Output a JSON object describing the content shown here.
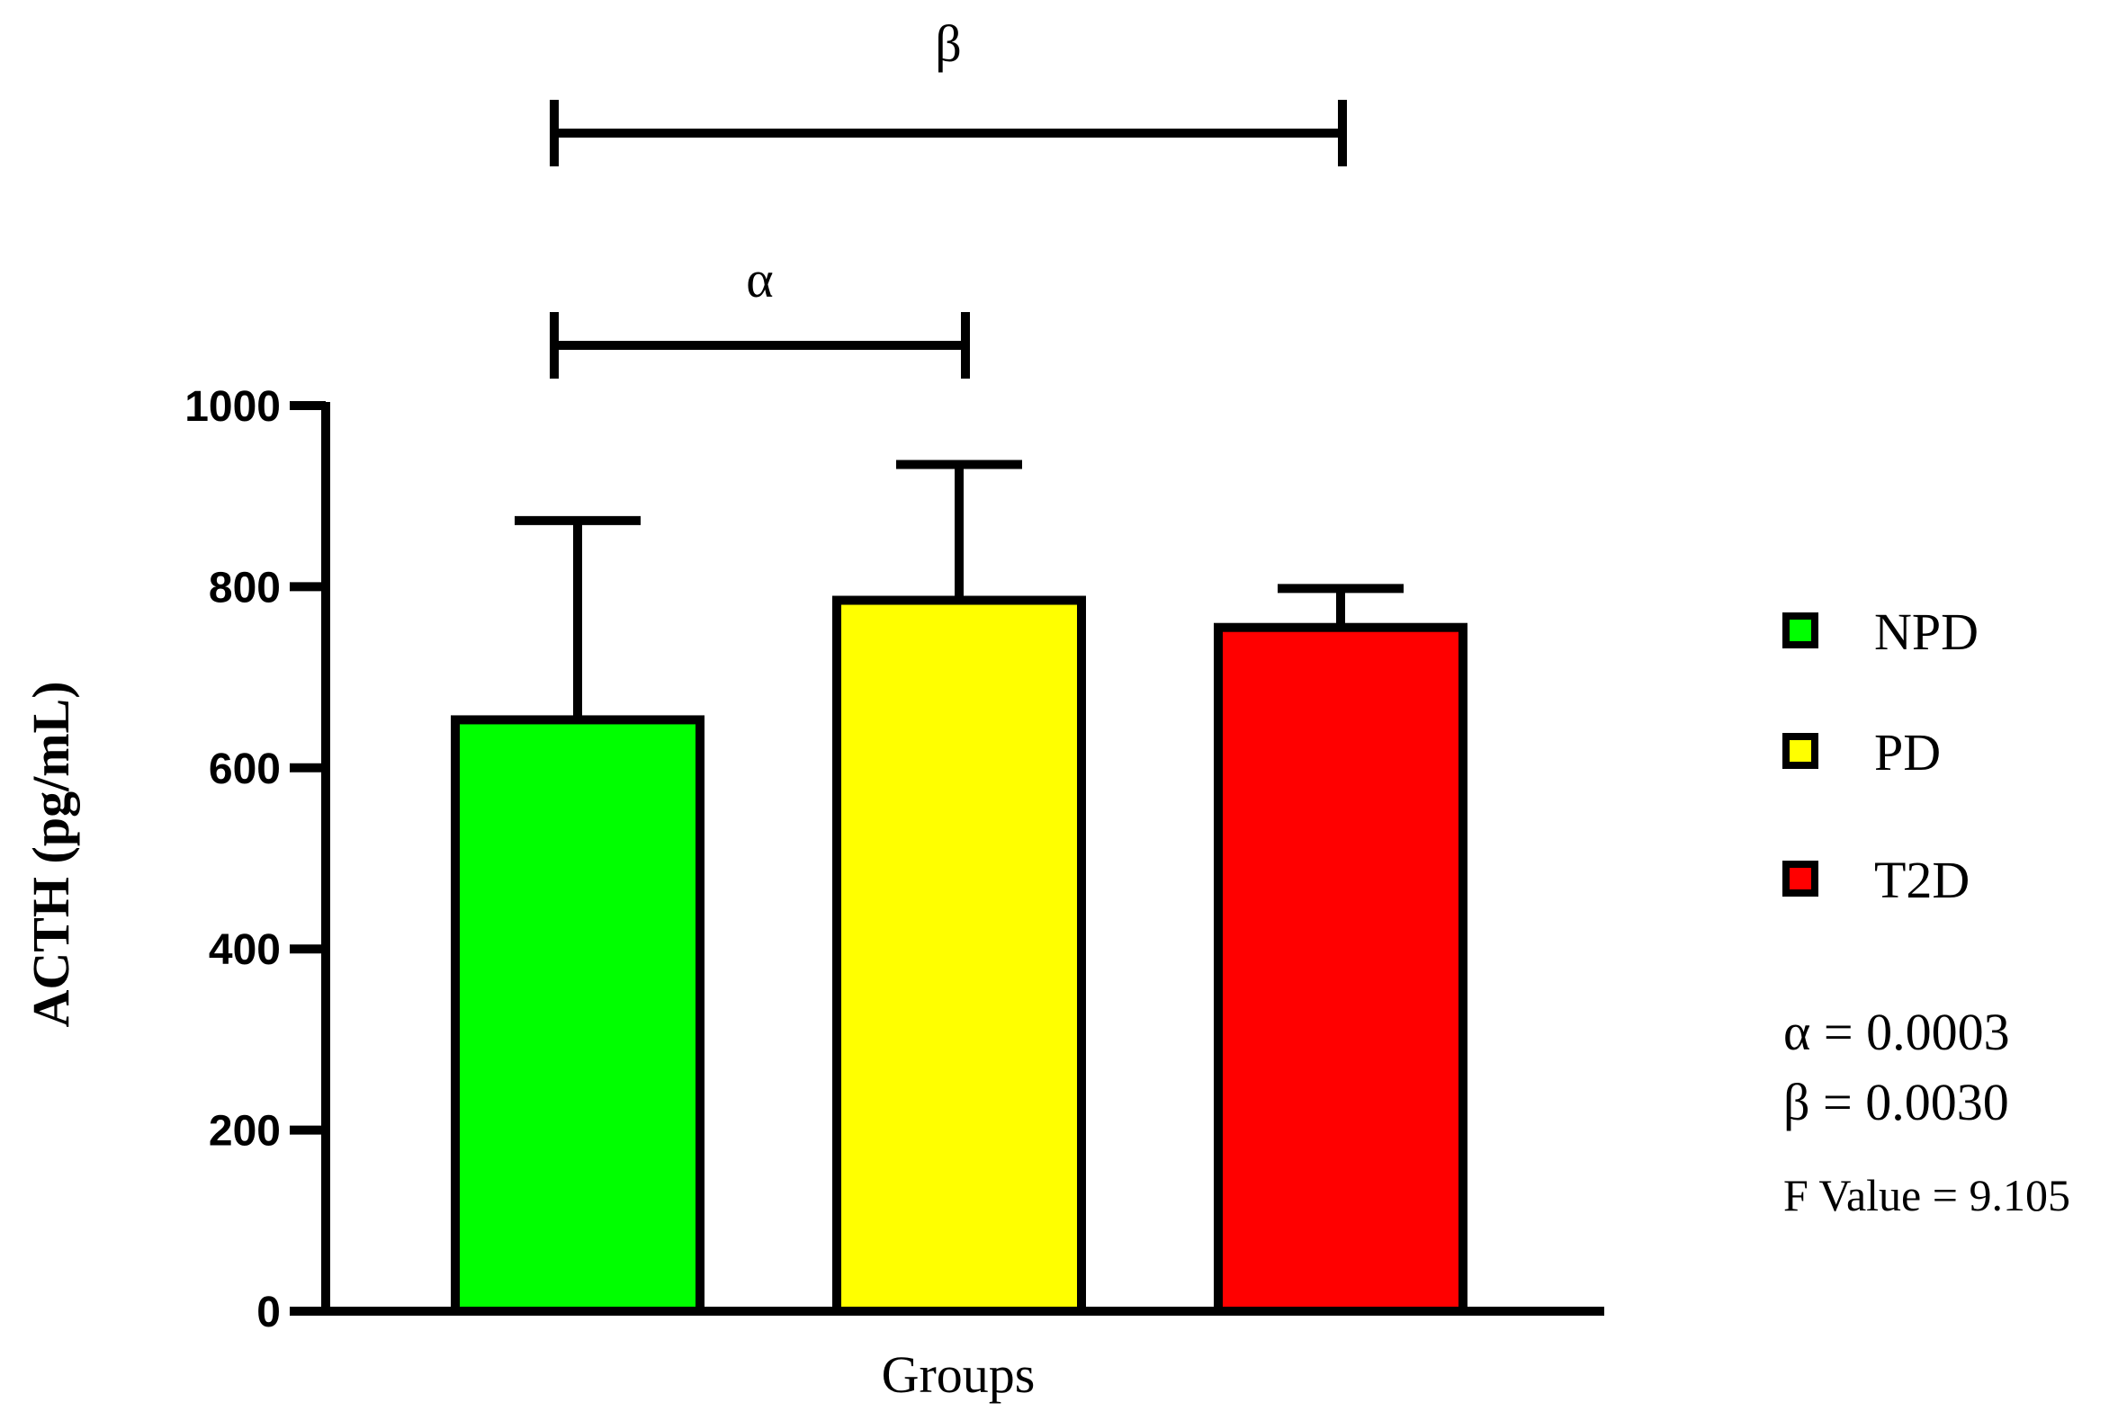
{
  "chart_data": {
    "type": "bar",
    "categories": [
      "NPD",
      "PD",
      "T2D"
    ],
    "values": [
      653,
      785,
      755
    ],
    "errors": [
      220,
      150,
      43
    ],
    "colors": [
      "#00ff00",
      "#ffff00",
      "#ff0000"
    ],
    "xlabel": "Groups",
    "ylabel": "ACTH (pg/mL)",
    "ylim": [
      0,
      1000
    ],
    "yticks": [
      0,
      200,
      400,
      600,
      800,
      1000
    ],
    "grid": false,
    "legend": {
      "placement": "right",
      "entries": [
        {
          "label": "NPD",
          "color": "#00ff00"
        },
        {
          "label": "PD",
          "color": "#ffff00"
        },
        {
          "label": "T2D",
          "color": "#ff0000"
        }
      ]
    },
    "significance": [
      {
        "symbol": "β",
        "from": "NPD",
        "to": "T2D"
      },
      {
        "symbol": "α",
        "from": "NPD",
        "to": "PD"
      }
    ],
    "annotations": [
      "α = 0.0003",
      "β = 0.0030",
      "F Value = 9.105"
    ]
  }
}
